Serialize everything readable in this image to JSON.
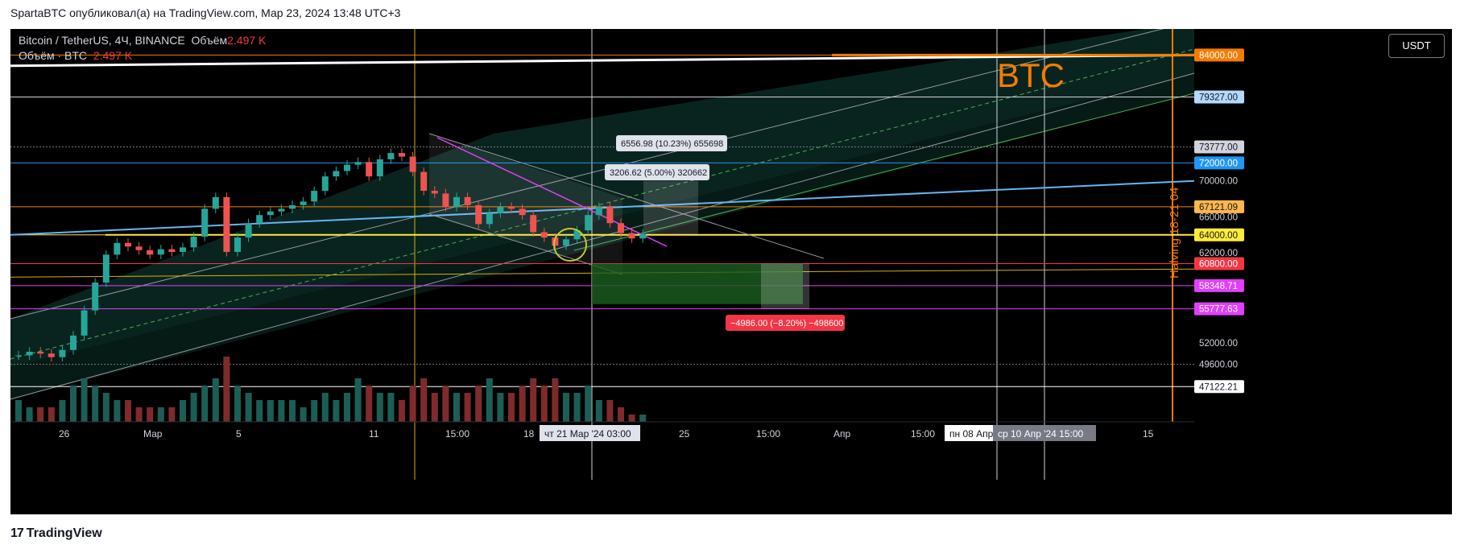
{
  "header": {
    "published": "SpartaBTC опубликовал(а) на TradingView.com, Мар 23, 2024 13:48 UTC+3"
  },
  "legend": {
    "symbol": "Bitcoin / TetherUS, 4Ч, BINANCE",
    "volume_label": "Объём",
    "volume_value": "2.497 K",
    "line2_label": "Объём · BTC",
    "line2_value": "2.497 K"
  },
  "currency_button": "USDT",
  "watermark": "BTC",
  "halving_label": "Halving 18-21 04",
  "footer": {
    "brand": "TradingView",
    "logo": "17"
  },
  "chart_data": {
    "type": "candlestick",
    "title": "Bitcoin / TetherUS, 4Ч, BINANCE",
    "ylim": [
      45000,
      86000
    ],
    "price_labels": [
      {
        "text": "84000.00",
        "value": 84000,
        "bg": "#f57c00",
        "fg": "#ffffff"
      },
      {
        "text": "79327.00",
        "value": 79327,
        "bg": "#b3d9ff",
        "fg": "#131722"
      },
      {
        "text": "73777.00",
        "value": 73777,
        "bg": "#d1d4dc",
        "fg": "#131722"
      },
      {
        "text": "72000.00",
        "value": 72000,
        "bg": "#2196f3",
        "fg": "#ffffff"
      },
      {
        "text": "70000.00",
        "value": 70000,
        "bg": "",
        "fg": "#d1d4dc"
      },
      {
        "text": "67121.09",
        "value": 67121.09,
        "bg": "#ffb74d",
        "fg": "#131722"
      },
      {
        "text": "66000.00",
        "value": 66000,
        "bg": "",
        "fg": "#d1d4dc"
      },
      {
        "text": "64000.00",
        "value": 64000,
        "bg": "#ffeb3b",
        "fg": "#131722"
      },
      {
        "text": "62000.00",
        "value": 62000,
        "bg": "",
        "fg": "#d1d4dc"
      },
      {
        "text": "60800.00",
        "value": 60800,
        "bg": "#f23645",
        "fg": "#ffffff"
      },
      {
        "text": "58348.71",
        "value": 58348.71,
        "bg": "#e040fb",
        "fg": "#ffffff"
      },
      {
        "text": "55777.63",
        "value": 55777.63,
        "bg": "#e040fb",
        "fg": "#ffffff"
      },
      {
        "text": "52000.00",
        "value": 52000,
        "bg": "",
        "fg": "#d1d4dc"
      },
      {
        "text": "49600.00",
        "value": 49600,
        "bg": "",
        "fg": "#d1d4dc"
      },
      {
        "text": "47122.21",
        "value": 47122.21,
        "bg": "#ffffff",
        "fg": "#131722"
      }
    ],
    "time_labels": [
      {
        "text": "26"
      },
      {
        "text": "Мар"
      },
      {
        "text": "5"
      },
      {
        "text": "11"
      },
      {
        "text": "15:00"
      },
      {
        "text": "18"
      },
      {
        "text": "25"
      },
      {
        "text": "15:00"
      },
      {
        "text": "Апр"
      },
      {
        "text": "15:00"
      },
      {
        "text": "15"
      }
    ],
    "time_markers": [
      "чт 21 Мар '24   03:00",
      "пн 08 Апр",
      "ср 10 Апр '24   15:00"
    ],
    "horizontal_levels": [
      {
        "value": 84000,
        "color": "#f57c00"
      },
      {
        "value": 79327,
        "color": "#d1d4dc"
      },
      {
        "value": 73777,
        "color": "#787b86"
      },
      {
        "value": 72000,
        "color": "#2196f3"
      },
      {
        "value": 67121.09,
        "color": "#f57c00"
      },
      {
        "value": 64000,
        "color": "#ffeb3b"
      },
      {
        "value": 60800,
        "color": "#f23645"
      },
      {
        "value": 58348.71,
        "color": "#e040fb"
      },
      {
        "value": 55777.63,
        "color": "#e040fb"
      },
      {
        "value": 49600,
        "color": "#787b86"
      },
      {
        "value": 47122.21,
        "color": "#ffffff"
      }
    ],
    "annotations": [
      {
        "text": "6556.98 (10.23%) 655698",
        "style": "light"
      },
      {
        "text": "3206.62 (5.00%) 320662",
        "style": "light"
      },
      {
        "text": "−4986.00 (−8.20%) −498600",
        "style": "red"
      }
    ],
    "close_series": [
      50600,
      51000,
      50800,
      50400,
      51200,
      52800,
      55600,
      58700,
      61800,
      63100,
      62700,
      62300,
      61800,
      62400,
      62100,
      62600,
      63800,
      66900,
      68200,
      62100,
      63700,
      65300,
      66200,
      66600,
      66900,
      67300,
      67700,
      68900,
      70500,
      71100,
      71800,
      72100,
      70500,
      72400,
      73100,
      72700,
      71000,
      68900,
      68600,
      67100,
      68200,
      67300,
      65200,
      66400,
      67100,
      66900,
      66200,
      64300,
      63700,
      62800,
      63500,
      64500,
      66200,
      67100,
      65300,
      64200,
      63600,
      64100
    ],
    "volume_series": [
      3,
      2,
      2,
      2,
      3,
      5,
      6,
      5,
      4,
      3,
      3,
      2,
      2,
      2,
      2,
      3,
      4,
      5,
      6,
      9,
      5,
      4,
      3,
      3,
      3,
      3,
      2,
      3,
      4,
      3,
      4,
      6,
      5,
      4,
      4,
      3,
      5,
      6,
      4,
      5,
      4,
      4,
      5,
      6,
      4,
      4,
      5,
      6,
      5,
      6,
      4,
      4,
      5,
      3,
      3,
      2,
      1,
      1
    ]
  }
}
